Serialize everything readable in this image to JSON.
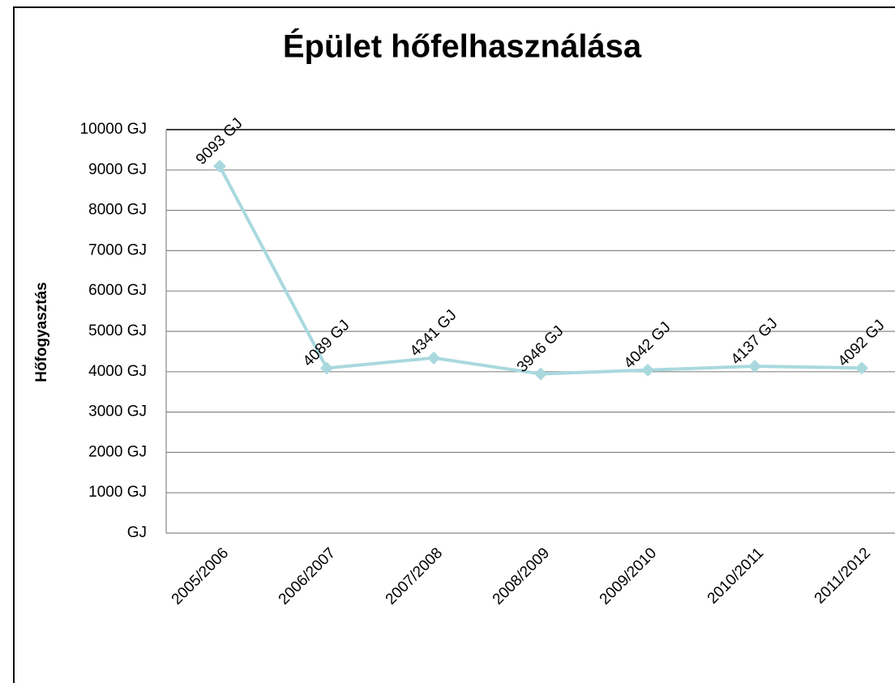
{
  "chart_data": {
    "type": "line",
    "title": "Épület hőfelhasználása",
    "y_axis_label": "Hőfogyasztás",
    "categories": [
      "2005/2006",
      "2006/2007",
      "2007/2008",
      "2008/2009",
      "2009/2010",
      "2010/2011",
      "2011/2012"
    ],
    "series": [
      {
        "name": "Hőfogyasztás",
        "color": "#a9d9de",
        "values": [
          9093,
          4089,
          4341,
          3946,
          4042,
          4137,
          4092
        ],
        "value_labels": [
          "9093 GJ",
          "4089 GJ",
          "4341 GJ",
          "3946 GJ",
          "4042 GJ",
          "4137 GJ",
          "4092 GJ"
        ]
      }
    ],
    "ylim": [
      0,
      10000
    ],
    "yticks": [
      {
        "value": 0,
        "label": "GJ"
      },
      {
        "value": 1000,
        "label": "1000 GJ"
      },
      {
        "value": 2000,
        "label": "2000 GJ"
      },
      {
        "value": 3000,
        "label": "3000 GJ"
      },
      {
        "value": 4000,
        "label": "4000 GJ"
      },
      {
        "value": 5000,
        "label": "5000 GJ"
      },
      {
        "value": 6000,
        "label": "6000 GJ"
      },
      {
        "value": 7000,
        "label": "7000 GJ"
      },
      {
        "value": 8000,
        "label": "8000 GJ"
      },
      {
        "value": 9000,
        "label": "9000 GJ"
      },
      {
        "value": 10000,
        "label": "10000 GJ"
      }
    ],
    "grid": true
  }
}
